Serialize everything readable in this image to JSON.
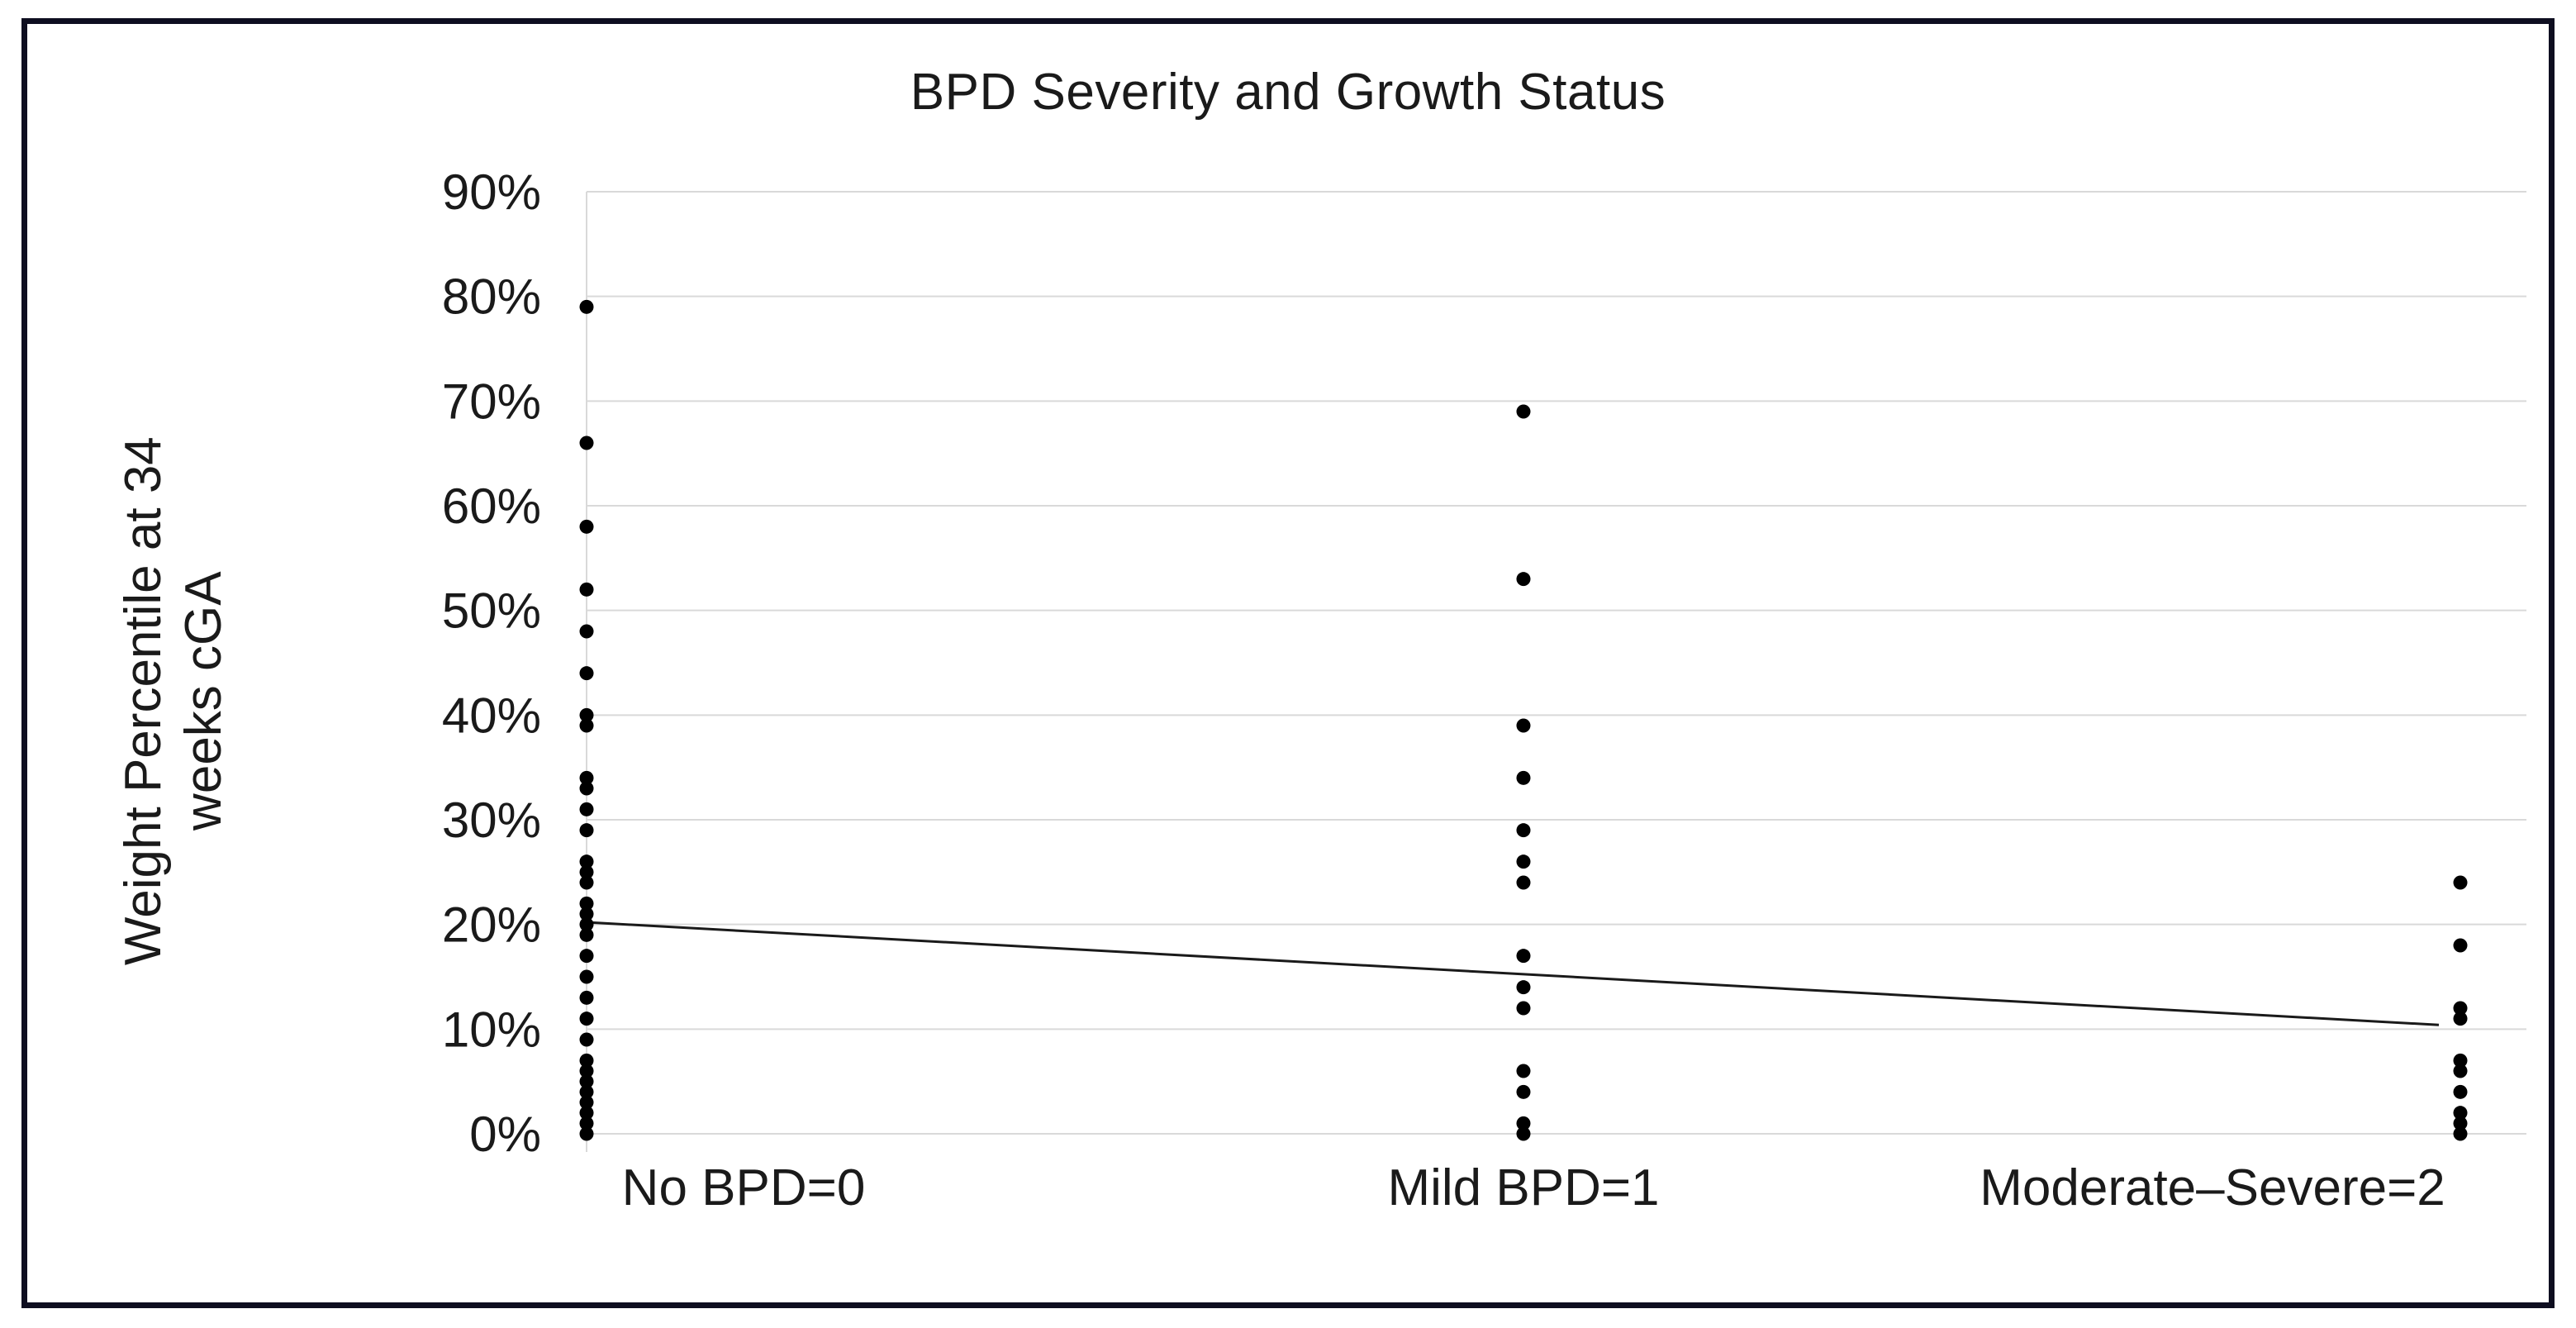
{
  "chart_data": {
    "type": "scatter",
    "title": "BPD Severity and Growth Status",
    "ylabel": "Weight Percentile at 34\nweeks cGA",
    "categories": [
      "No BPD=0",
      "Mild BPD=1",
      "Moderate–Severe=2"
    ],
    "ylim": [
      0,
      90
    ],
    "ytick_step": 10,
    "ytick_labels": [
      "0%",
      "10%",
      "20%",
      "30%",
      "40%",
      "50%",
      "60%",
      "70%",
      "80%",
      "90%"
    ],
    "grid": true,
    "legend": "none",
    "point_color": "#000000",
    "gridline_color": "#d9d9d9",
    "axis_line_color": "#d9d9d9",
    "trendline_color": "#1a1a1a",
    "series": [
      {
        "name": "No BPD=0",
        "x": 0,
        "values": [
          79,
          66,
          58,
          52,
          48,
          44,
          40,
          39,
          34,
          33,
          31,
          29,
          26,
          25,
          24,
          22,
          21,
          20,
          19,
          17,
          15,
          13,
          11,
          9,
          7,
          6,
          5,
          4,
          3,
          2,
          1,
          0
        ]
      },
      {
        "name": "Mild BPD=1",
        "x": 1,
        "values": [
          69,
          53,
          39,
          34,
          29,
          26,
          24,
          17,
          14,
          12,
          6,
          4,
          1,
          0
        ]
      },
      {
        "name": "Moderate–Severe=2",
        "x": 2,
        "values": [
          24,
          18,
          12,
          11,
          7,
          6,
          4,
          2,
          1,
          0
        ]
      }
    ],
    "trendline": {
      "start_percent": 20.2,
      "end_percent": 10.4
    }
  }
}
